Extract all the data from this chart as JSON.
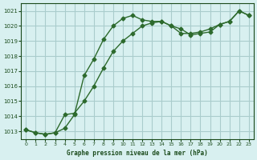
{
  "title": "Graphe pression niveau de la mer (hPa)",
  "xlabel_ticks": [
    0,
    1,
    2,
    3,
    4,
    5,
    6,
    7,
    8,
    9,
    10,
    11,
    12,
    13,
    14,
    15,
    16,
    17,
    18,
    19,
    20,
    21,
    22,
    23
  ],
  "ylim": [
    1012.5,
    1021.5
  ],
  "yticks": [
    1013,
    1014,
    1015,
    1016,
    1017,
    1018,
    1019,
    1020,
    1021
  ],
  "line1_x": [
    0,
    1,
    2,
    3,
    4,
    5,
    6,
    7,
    8,
    9,
    10,
    11,
    12,
    13,
    14,
    15,
    16,
    17,
    18,
    19,
    20,
    21,
    22,
    23
  ],
  "line1_y": [
    1013.1,
    1012.9,
    1012.8,
    1012.9,
    1013.2,
    1014.1,
    1016.7,
    1017.8,
    1019.1,
    1020.0,
    1020.5,
    1020.7,
    1020.4,
    1020.3,
    1020.3,
    1020.0,
    1019.8,
    1019.4,
    1019.5,
    1019.6,
    1020.1,
    1020.3,
    1021.0,
    1020.7
  ],
  "line2_x": [
    0,
    1,
    2,
    3,
    4,
    5,
    6,
    7,
    8,
    9,
    10,
    11,
    12,
    13,
    14,
    15,
    16,
    17,
    18,
    19,
    20,
    21,
    22,
    23
  ],
  "line2_y": [
    1013.1,
    1012.9,
    1012.8,
    1012.9,
    1014.1,
    1014.2,
    1015.0,
    1016.0,
    1017.2,
    1018.3,
    1019.0,
    1019.5,
    1020.0,
    1020.2,
    1020.3,
    1020.0,
    1019.5,
    1019.5,
    1019.6,
    1019.8,
    1020.1,
    1020.3,
    1021.0,
    1020.7
  ],
  "line_color": "#2d6a2d",
  "bg_color": "#d8f0f0",
  "grid_color": "#aacccc",
  "title_color": "#1a4a1a",
  "tick_color": "#1a4a1a"
}
